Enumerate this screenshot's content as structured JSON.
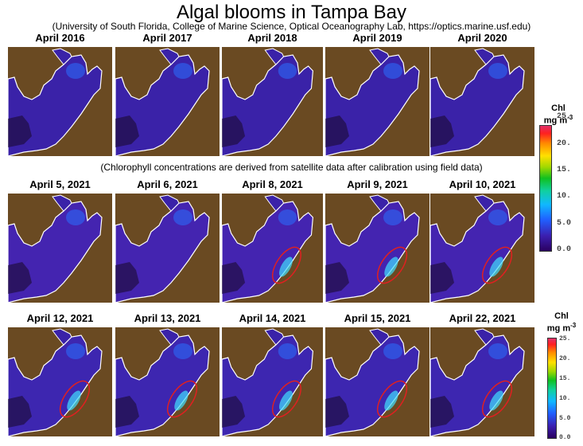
{
  "header": {
    "title": "Algal blooms in Tampa Bay",
    "subtitle": "(University of South Florida, College of Marine Science, Optical Oceanography Lab, https://optics.marine.usf.edu)"
  },
  "note": "(Chlorophyll concentrations are derived from satellite data after calibration using field data)",
  "panels": [
    {
      "label": "April 2016",
      "ellipse": false
    },
    {
      "label": "April 2017",
      "ellipse": false
    },
    {
      "label": "April 2018",
      "ellipse": false
    },
    {
      "label": "April 2019",
      "ellipse": false
    },
    {
      "label": "April 2020",
      "ellipse": false
    },
    {
      "label": "April 5, 2021",
      "ellipse": false
    },
    {
      "label": "April 6, 2021",
      "ellipse": false
    },
    {
      "label": "April 8, 2021",
      "ellipse": true
    },
    {
      "label": "April 9, 2021",
      "ellipse": true
    },
    {
      "label": "April 10, 2021",
      "ellipse": true
    },
    {
      "label": "April 12, 2021",
      "ellipse": true
    },
    {
      "label": "April 13, 2021",
      "ellipse": true
    },
    {
      "label": "April 14, 2021",
      "ellipse": true
    },
    {
      "label": "April 15, 2021",
      "ellipse": true
    },
    {
      "label": "April 22, 2021",
      "ellipse": true
    }
  ],
  "colorbar_top": {
    "title_line1": "Chl",
    "title_line2": "mg m",
    "title_sup": "-3",
    "ticks": [
      "25.",
      "20.",
      "15.",
      "10.",
      "5.0",
      "0.0"
    ]
  },
  "colorbar_bottom": {
    "title_line1": "Chl",
    "title_line2": "mg m",
    "title_sup": "-3",
    "ticks": [
      "25.",
      "20.",
      "15.",
      "10.",
      "5.0",
      "0.0"
    ]
  },
  "colors": {
    "land": "#6a4a22",
    "water_low": "#3a1fa0",
    "coastline": "#ffffff",
    "ellipse": "#e02020"
  }
}
